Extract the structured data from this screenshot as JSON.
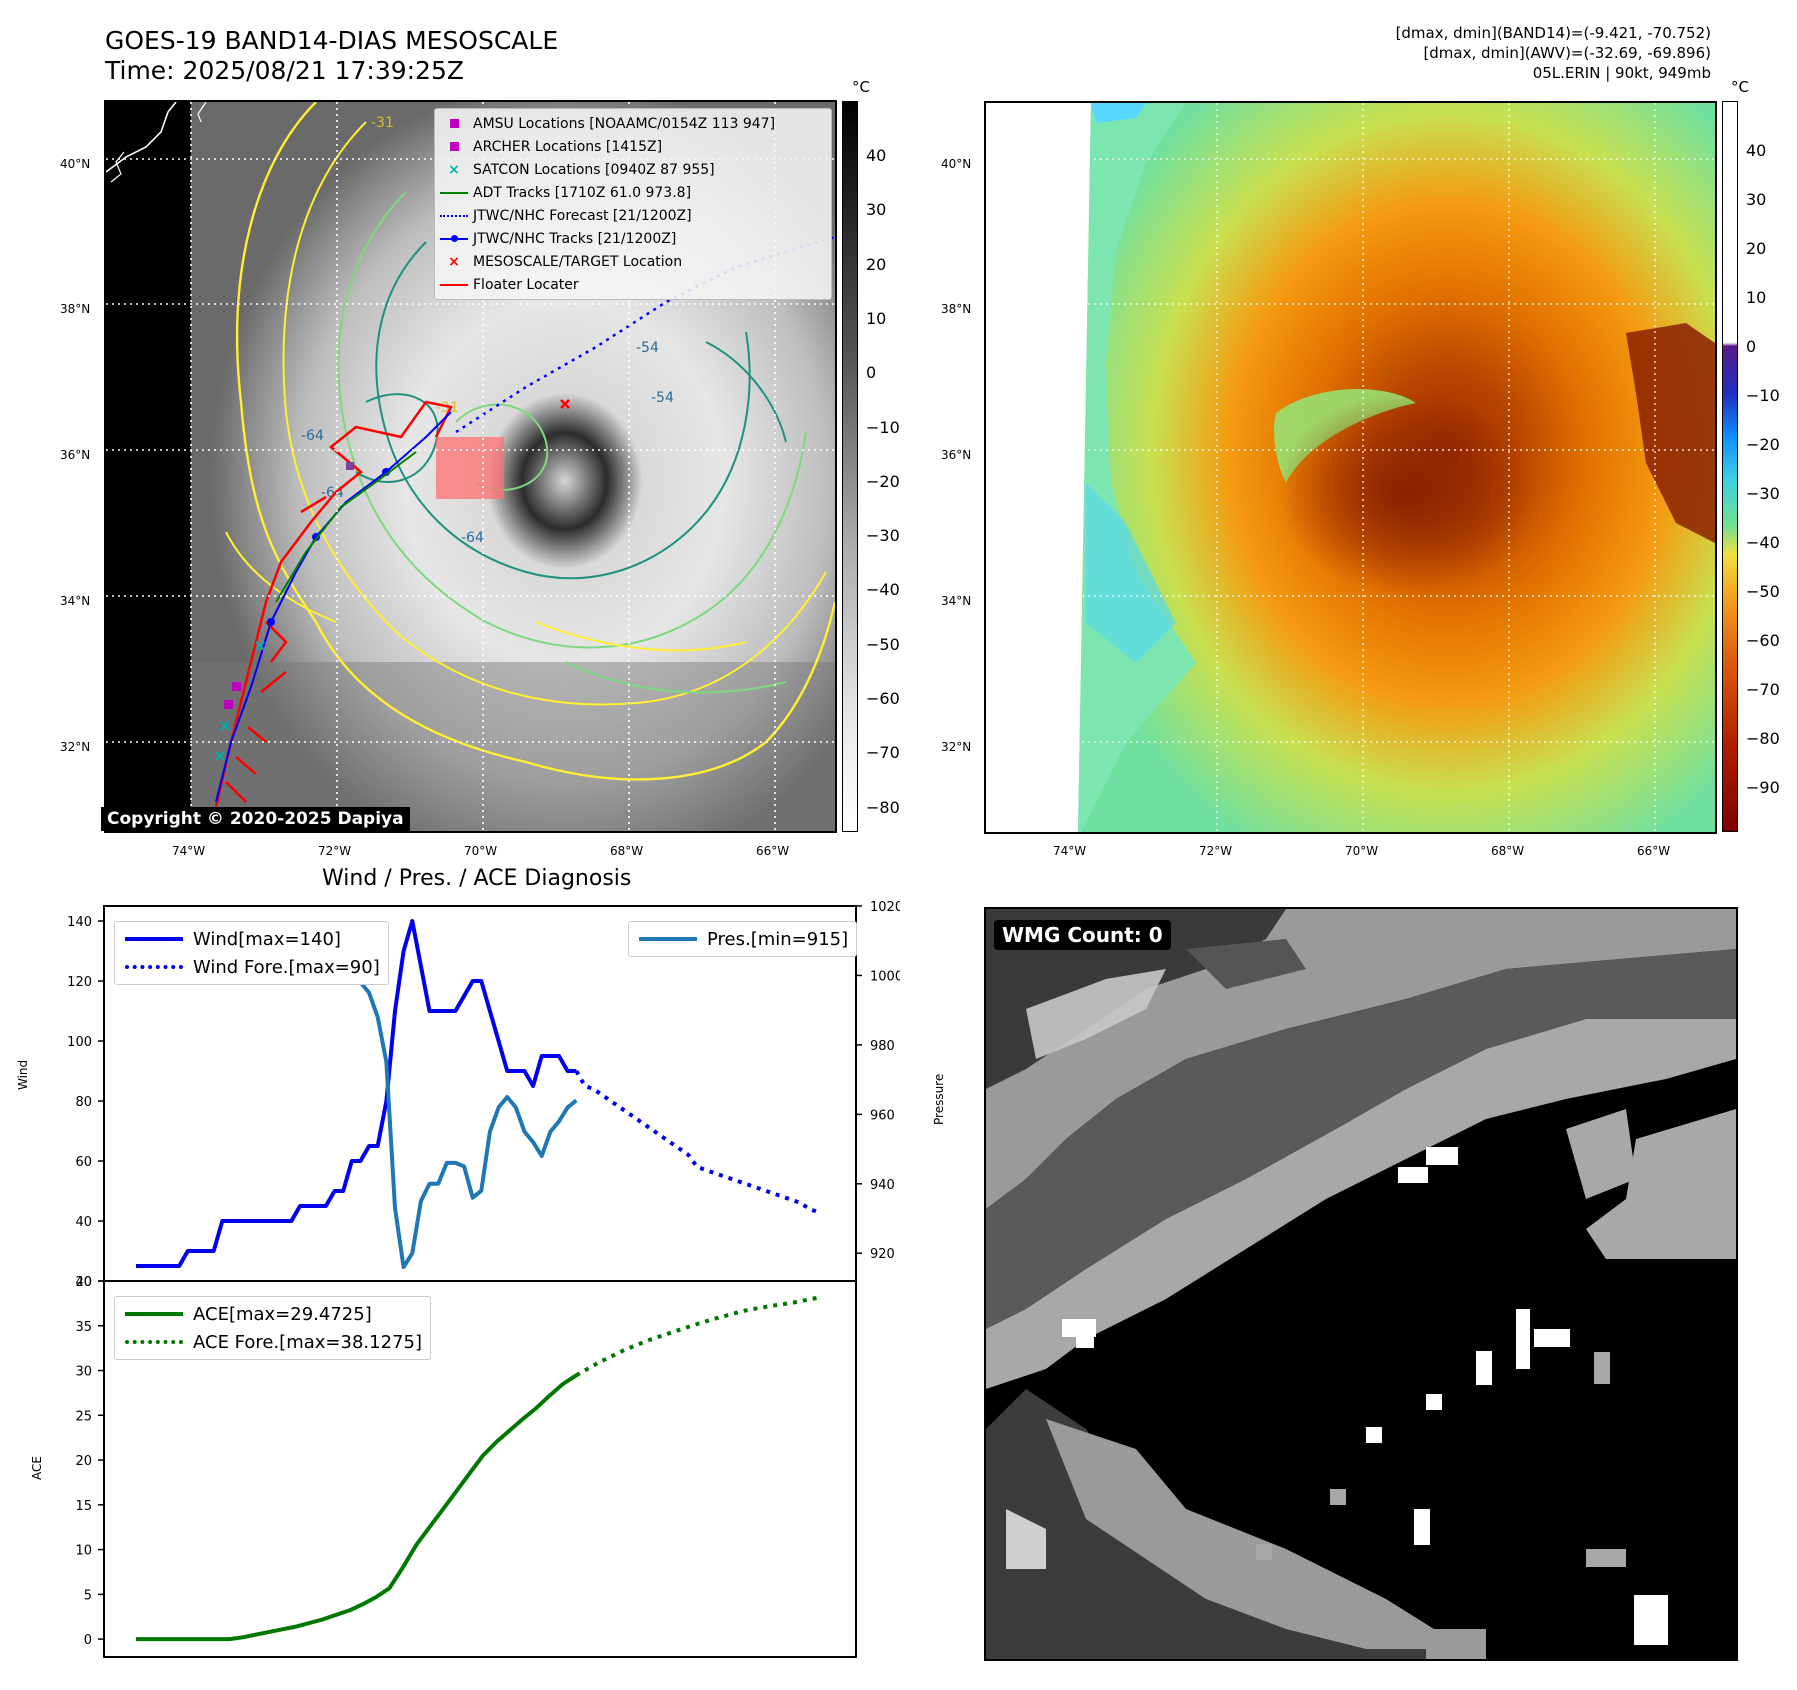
{
  "header": {
    "title_line1": "GOES-19 BAND14-DIAS MESOSCALE",
    "title_line2": "Time: 2025/08/21 17:39:25Z",
    "info_line1": "[dmax, dmin](BAND14)=(-9.421, -70.752)",
    "info_line2": "[dmax, dmin](AWV)=(-32.69, -69.896)",
    "info_line3": "05L.ERIN | 90kt, 949mb"
  },
  "map_left": {
    "copyright": "Copyright © 2020-2025 Dapiya",
    "contour_labels": [
      "-31",
      "-54",
      "-64",
      "-64",
      "-64",
      "-54",
      "-31"
    ],
    "legend": [
      {
        "label": "AMSU Locations [NOAAMC/0154Z 113 947]",
        "symbol": "square",
        "color": "#c000c0"
      },
      {
        "label": "ARCHER Locations [1415Z]",
        "symbol": "square",
        "color": "#c000c0"
      },
      {
        "label": "SATCON Locations [0940Z 87 955]",
        "symbol": "x",
        "color": "#00b0b0"
      },
      {
        "label": "ADT Tracks [1710Z 61.0 973.8]",
        "symbol": "line",
        "color": "#008000"
      },
      {
        "label": "JTWC/NHC Forecast [21/1200Z]",
        "symbol": "dotted",
        "color": "#0000ff"
      },
      {
        "label": "JTWC/NHC Tracks [21/1200Z]",
        "symbol": "line-dot",
        "color": "#0000ff"
      },
      {
        "label": "MESOSCALE/TARGET Location",
        "symbol": "x",
        "color": "#ff0000"
      },
      {
        "label": "Floater Locater",
        "symbol": "line",
        "color": "#ff0000"
      }
    ]
  },
  "map_axes": {
    "lat_labels": [
      "40°N",
      "38°N",
      "36°N",
      "34°N",
      "32°N"
    ],
    "lon_labels": [
      "74°W",
      "72°W",
      "70°W",
      "68°W",
      "66°W"
    ]
  },
  "colorbar_left": {
    "unit": "°C",
    "ticks": [
      "40",
      "30",
      "20",
      "10",
      "0",
      "−10",
      "−20",
      "−30",
      "−40",
      "−50",
      "−60",
      "−70",
      "−80"
    ]
  },
  "colorbar_right": {
    "unit": "°C",
    "ticks": [
      "40",
      "30",
      "20",
      "10",
      "0",
      "−10",
      "−20",
      "−30",
      "−40",
      "−50",
      "−60",
      "−70",
      "−80",
      "−90"
    ]
  },
  "diagnosis": {
    "title": "Wind / Pres. / ACE Diagnosis",
    "wind_ylabel": "Wind",
    "pres_ylabel": "Pressure",
    "ace_ylabel": "ACE",
    "wind_ticks": [
      "140",
      "120",
      "100",
      "80",
      "60",
      "40",
      "20"
    ],
    "pres_ticks": [
      "1020",
      "1000",
      "980",
      "960",
      "940",
      "920"
    ],
    "ace_ticks": [
      "40",
      "35",
      "30",
      "25",
      "20",
      "15",
      "10",
      "5",
      "0"
    ]
  },
  "wmg": {
    "label": "WMG Count: 0"
  },
  "colors": {
    "wind": "#0000ee",
    "pressure": "#1f77b4",
    "ace": "#007700",
    "contour_yellow": "#ffee33",
    "contour_lightgreen": "#7fd87f",
    "contour_teal": "#209080",
    "floater": "#ff0000"
  },
  "chart_data": [
    {
      "type": "line",
      "title": "Wind / Pres. / ACE Diagnosis",
      "ylabel": "Wind",
      "ylim": [
        20,
        145
      ],
      "series": [
        {
          "name": "Wind[max=140]",
          "values": [
            25,
            25,
            25,
            25,
            25,
            25,
            30,
            30,
            30,
            30,
            40,
            40,
            40,
            40,
            40,
            40,
            40,
            40,
            40,
            45,
            45,
            45,
            45,
            50,
            50,
            60,
            60,
            65,
            65,
            80,
            110,
            130,
            140,
            125,
            110,
            110,
            110,
            110,
            115,
            120,
            120,
            110,
            100,
            90,
            90,
            90,
            85,
            95,
            95,
            95,
            90,
            90
          ]
        },
        {
          "name": "Wind Fore.[max=90]",
          "values": [
            90,
            85,
            84,
            82,
            80,
            78,
            76,
            74,
            72,
            70,
            68,
            66,
            64,
            62,
            58,
            57,
            56,
            55,
            54,
            53,
            52,
            51,
            50,
            49,
            48,
            47,
            46,
            44,
            43
          ]
        }
      ]
    },
    {
      "type": "line",
      "ylabel": "Pressure",
      "ylim": [
        912,
        1020
      ],
      "series": [
        {
          "name": "Pres.[min=915]",
          "values": [
            1015,
            1015,
            1012,
            1011,
            1010,
            1010,
            1010,
            1010,
            1010,
            1010,
            1010,
            1010,
            1009,
            1009,
            1008,
            1008,
            1008,
            1008,
            1008,
            1006,
            1004,
            1001,
            1000,
            1000,
            1000,
            1000,
            998,
            995,
            988,
            975,
            933,
            916,
            920,
            935,
            940,
            940,
            946,
            946,
            945,
            936,
            938,
            955,
            962,
            965,
            962,
            955,
            952,
            948,
            955,
            958,
            962,
            964
          ]
        }
      ]
    },
    {
      "type": "line",
      "ylabel": "ACE",
      "ylim": [
        -2,
        40
      ],
      "series": [
        {
          "name": "ACE[max=29.4725]",
          "values": [
            0,
            0,
            0,
            0,
            0,
            0,
            0,
            0,
            0.2,
            0.5,
            0.8,
            1.1,
            1.4,
            1.8,
            2.2,
            2.7,
            3.2,
            3.9,
            4.7,
            5.7,
            8,
            10.5,
            12.5,
            14.5,
            16.5,
            18.5,
            20.5,
            22,
            23.3,
            24.6,
            25.8,
            27.2,
            28.5,
            29.47
          ]
        },
        {
          "name": "ACE Fore.[max=38.1275]",
          "values": [
            29.47,
            31,
            32.3,
            33.4,
            34.3,
            35.2,
            36,
            36.7,
            37.2,
            37.6,
            38.13
          ]
        }
      ]
    }
  ]
}
